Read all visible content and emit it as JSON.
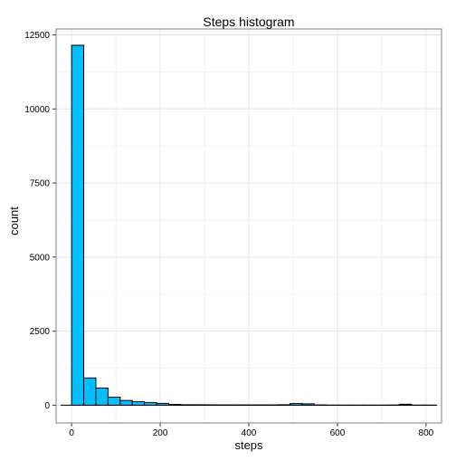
{
  "chart_data": {
    "type": "bar",
    "title": "Steps histogram",
    "xlabel": "steps",
    "ylabel": "count",
    "xlim": [
      -35,
      835
    ],
    "ylim": [
      -600,
      12700
    ],
    "x_ticks": [
      0,
      200,
      400,
      600,
      800
    ],
    "y_ticks": [
      0,
      2500,
      5000,
      7500,
      10000,
      12500
    ],
    "grid": true,
    "bin_width": 27.4,
    "fill_color": "#00bfff",
    "edge_color": "#000000",
    "bins": [
      {
        "x_start": 0,
        "count": 12150
      },
      {
        "x_start": 27.4,
        "count": 920
      },
      {
        "x_start": 54.8,
        "count": 580
      },
      {
        "x_start": 82.2,
        "count": 270
      },
      {
        "x_start": 109.6,
        "count": 160
      },
      {
        "x_start": 137.0,
        "count": 120
      },
      {
        "x_start": 164.4,
        "count": 90
      },
      {
        "x_start": 191.8,
        "count": 60
      },
      {
        "x_start": 219.2,
        "count": 25
      },
      {
        "x_start": 246.6,
        "count": 15
      },
      {
        "x_start": 274.0,
        "count": 15
      },
      {
        "x_start": 301.4,
        "count": 12
      },
      {
        "x_start": 328.8,
        "count": 10
      },
      {
        "x_start": 356.2,
        "count": 10
      },
      {
        "x_start": 383.6,
        "count": 10
      },
      {
        "x_start": 411.0,
        "count": 10
      },
      {
        "x_start": 438.4,
        "count": 10
      },
      {
        "x_start": 465.8,
        "count": 15
      },
      {
        "x_start": 493.2,
        "count": 55
      },
      {
        "x_start": 520.6,
        "count": 45
      },
      {
        "x_start": 548.0,
        "count": 10
      },
      {
        "x_start": 575.4,
        "count": 3
      },
      {
        "x_start": 602.8,
        "count": 3
      },
      {
        "x_start": 630.2,
        "count": 3
      },
      {
        "x_start": 657.6,
        "count": 3
      },
      {
        "x_start": 685.0,
        "count": 3
      },
      {
        "x_start": 712.4,
        "count": 5
      },
      {
        "x_start": 739.8,
        "count": 30
      },
      {
        "x_start": 767.2,
        "count": 3
      },
      {
        "x_start": 794.6,
        "count": 3
      }
    ],
    "baseline_range": [
      -25,
      825
    ]
  }
}
